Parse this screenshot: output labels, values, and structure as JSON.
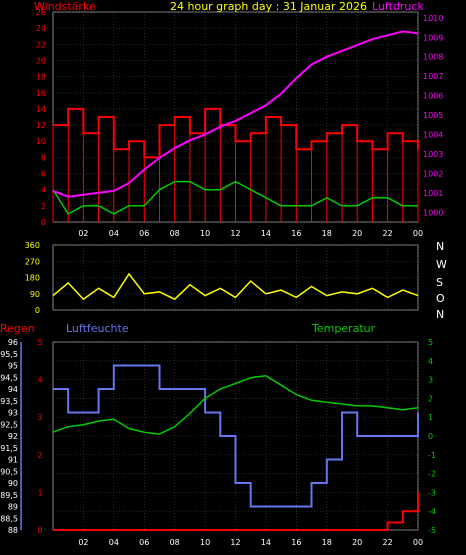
{
  "header": {
    "title": "24 hour graph day : 31 Januar 2026",
    "left_label": "Windstärke",
    "right_label": "Luftdruck"
  },
  "compass_labels": [
    "N",
    "W",
    "S",
    "O",
    "N"
  ],
  "bottom_labels": {
    "regen": "Regen",
    "luftfeuchte": "Luftfeuchte",
    "temperatur": "Temperatur"
  },
  "colors": {
    "wind": "#ff0000",
    "gust": "#00cc00",
    "pressure": "#ff00ff",
    "direction": "#ffff00",
    "humidity": "#6677ee",
    "temperature": "#00cc00",
    "rain": "#ff0000",
    "grid": "#444444",
    "axis_left_top": "#ff0000",
    "axis_right_top": "#ff00ff",
    "axis_hum": "#6677ee",
    "axis_temp": "#00cc00",
    "axis_rain": "#ff0000"
  },
  "chart_data": [
    {
      "type": "line",
      "name": "wind-pressure",
      "x_ticks": [
        "02",
        "04",
        "06",
        "08",
        "10",
        "12",
        "14",
        "16",
        "18",
        "20",
        "22",
        "00"
      ],
      "y_left_ticks": [
        "0",
        "2",
        "4",
        "6",
        "8",
        "10",
        "12",
        "14",
        "16",
        "18",
        "20",
        "22",
        "24",
        "26"
      ],
      "y_right_ticks": [
        "1000",
        "1001",
        "1002",
        "1003",
        "1004",
        "1005",
        "1006",
        "1007",
        "1008",
        "1009",
        "1010"
      ],
      "y_left_range": [
        0,
        26
      ],
      "y_right_range": [
        999.5,
        1010.3
      ],
      "series": [
        {
          "name": "Windstärke",
          "x": [
            0,
            1,
            2,
            3,
            4,
            5,
            6,
            7,
            8,
            9,
            10,
            11,
            12,
            13,
            14,
            15,
            16,
            17,
            18,
            19,
            20,
            21,
            22,
            23,
            24
          ],
          "values": [
            12,
            14,
            11,
            13,
            9,
            10,
            8,
            12,
            13,
            11,
            14,
            12,
            10,
            11,
            13,
            12,
            9,
            10,
            11,
            12,
            10,
            9,
            11,
            10,
            9
          ]
        },
        {
          "name": "Böen",
          "x": [
            0,
            1,
            2,
            3,
            4,
            5,
            6,
            7,
            8,
            9,
            10,
            11,
            12,
            13,
            14,
            15,
            16,
            17,
            18,
            19,
            20,
            21,
            22,
            23,
            24
          ],
          "values": [
            4,
            1,
            2,
            2,
            1,
            2,
            2,
            4,
            5,
            5,
            4,
            4,
            5,
            4,
            3,
            2,
            2,
            2,
            3,
            2,
            2,
            3,
            3,
            2,
            2
          ]
        },
        {
          "name": "Luftdruck",
          "x": [
            0,
            1,
            2,
            3,
            4,
            5,
            6,
            7,
            8,
            9,
            10,
            11,
            12,
            13,
            14,
            15,
            16,
            17,
            18,
            19,
            20,
            21,
            22,
            23,
            24
          ],
          "values": [
            1001.1,
            1000.8,
            1000.9,
            1001.0,
            1001.1,
            1001.5,
            1002.2,
            1002.8,
            1003.3,
            1003.7,
            1004.0,
            1004.4,
            1004.7,
            1005.1,
            1005.5,
            1006.1,
            1006.9,
            1007.6,
            1008.0,
            1008.3,
            1008.6,
            1008.9,
            1009.1,
            1009.3,
            1009.2
          ]
        }
      ]
    },
    {
      "type": "line",
      "name": "wind-direction",
      "y_ticks": [
        "0",
        "90",
        "180",
        "270",
        "360"
      ],
      "y_range": [
        0,
        360
      ],
      "series": [
        {
          "name": "Windrichtung",
          "x": [
            0,
            1,
            2,
            3,
            4,
            5,
            6,
            7,
            8,
            9,
            10,
            11,
            12,
            13,
            14,
            15,
            16,
            17,
            18,
            19,
            20,
            21,
            22,
            23,
            24
          ],
          "values": [
            80,
            150,
            60,
            120,
            70,
            200,
            90,
            100,
            60,
            140,
            80,
            120,
            70,
            160,
            90,
            110,
            70,
            130,
            80,
            100,
            90,
            120,
            70,
            110,
            80
          ]
        }
      ]
    },
    {
      "type": "line",
      "name": "humidity-temperature-rain",
      "y_left_ticks": [
        "88",
        "88,5",
        "89",
        "89,5",
        "90",
        "90,5",
        "91",
        "91,5",
        "92",
        "92,5",
        "93",
        "93,5",
        "94",
        "94,5",
        "95",
        "95,5",
        "96"
      ],
      "y_rain_ticks": [
        "0",
        "1",
        "2",
        "3",
        "4",
        "5"
      ],
      "y_right_ticks": [
        "-5",
        "-4",
        "-3",
        "-2",
        "-1",
        "0",
        "1",
        "2",
        "3",
        "4",
        "5"
      ],
      "y_left_range": [
        88,
        96
      ],
      "y_right_range": [
        -5,
        5
      ],
      "series": [
        {
          "name": "Luftfeuchte",
          "x": [
            0,
            1,
            2,
            3,
            4,
            5,
            6,
            7,
            8,
            9,
            10,
            11,
            12,
            13,
            14,
            15,
            16,
            17,
            18,
            19,
            20,
            21,
            22,
            23,
            24
          ],
          "values": [
            94,
            93,
            93,
            94,
            95,
            95,
            95,
            94,
            94,
            94,
            93,
            92,
            90,
            89,
            89,
            89,
            89,
            90,
            91,
            93,
            92,
            92,
            92,
            92,
            93
          ]
        },
        {
          "name": "Temperatur",
          "x": [
            0,
            1,
            2,
            3,
            4,
            5,
            6,
            7,
            8,
            9,
            10,
            11,
            12,
            13,
            14,
            15,
            16,
            17,
            18,
            19,
            20,
            21,
            22,
            23,
            24
          ],
          "values": [
            0.2,
            0.5,
            0.6,
            0.8,
            0.9,
            0.4,
            0.2,
            0.1,
            0.5,
            1.2,
            2.0,
            2.5,
            2.8,
            3.1,
            3.2,
            2.7,
            2.2,
            1.9,
            1.8,
            1.7,
            1.6,
            1.6,
            1.5,
            1.4,
            1.5
          ]
        },
        {
          "name": "Regen",
          "x": [
            0,
            1,
            2,
            3,
            4,
            5,
            6,
            7,
            8,
            9,
            10,
            11,
            12,
            13,
            14,
            15,
            16,
            17,
            18,
            19,
            20,
            21,
            22,
            23,
            24
          ],
          "values": [
            0,
            0,
            0,
            0,
            0,
            0,
            0,
            0,
            0,
            0,
            0,
            0,
            0,
            0,
            0,
            0,
            0,
            0,
            0,
            0,
            0,
            0,
            0.2,
            0.5,
            1.0
          ]
        }
      ]
    }
  ]
}
